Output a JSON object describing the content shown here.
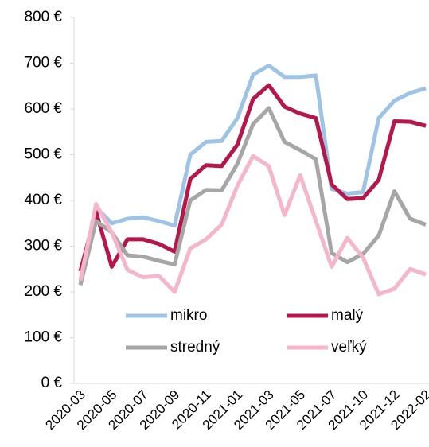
{
  "chart_data": {
    "type": "line",
    "categories": [
      "2020-03",
      null,
      "2020-05",
      null,
      "2020-07",
      null,
      "2020-09",
      null,
      "2020-11",
      null,
      "2021-01",
      null,
      "2021-03",
      null,
      "2021-05",
      null,
      "2021-07",
      null,
      "2021-10",
      null,
      "2021-12",
      null,
      "2022-02"
    ],
    "series": [
      {
        "name": "mikro",
        "color": "#9dc3e6",
        "values": [
          220,
          385,
          350,
          360,
          363,
          355,
          345,
          500,
          528,
          530,
          580,
          675,
          695,
          670,
          670,
          673,
          425,
          415,
          418,
          580,
          618,
          635,
          645
        ]
      },
      {
        "name": "malý",
        "color": "#b5174b",
        "values": [
          245,
          375,
          255,
          315,
          315,
          305,
          288,
          447,
          477,
          475,
          522,
          622,
          652,
          605,
          590,
          580,
          435,
          403,
          405,
          445,
          573,
          572,
          563
        ]
      },
      {
        "name": "stredný",
        "color": "#a6a6a6",
        "values": [
          215,
          355,
          330,
          280,
          277,
          268,
          260,
          400,
          423,
          422,
          480,
          567,
          602,
          528,
          510,
          490,
          285,
          265,
          283,
          323,
          420,
          360,
          347
        ]
      },
      {
        "name": "veľký",
        "color": "#f4b6c8",
        "values": [
          225,
          392,
          330,
          248,
          232,
          235,
          200,
          295,
          315,
          347,
          432,
          497,
          475,
          368,
          455,
          355,
          255,
          318,
          275,
          195,
          207,
          250,
          238
        ]
      }
    ],
    "ylim": [
      0,
      800
    ],
    "yticks": [
      {
        "value": 0,
        "label": "0 €"
      },
      {
        "value": 100,
        "label": "100 €"
      },
      {
        "value": 200,
        "label": "200 €"
      },
      {
        "value": 300,
        "label": "300 €"
      },
      {
        "value": 400,
        "label": "400 €"
      },
      {
        "value": 500,
        "label": "500 €"
      },
      {
        "value": 600,
        "label": "600 €"
      },
      {
        "value": 700,
        "label": "700 €"
      },
      {
        "value": 800,
        "label": "800 €"
      }
    ],
    "grid": false
  }
}
